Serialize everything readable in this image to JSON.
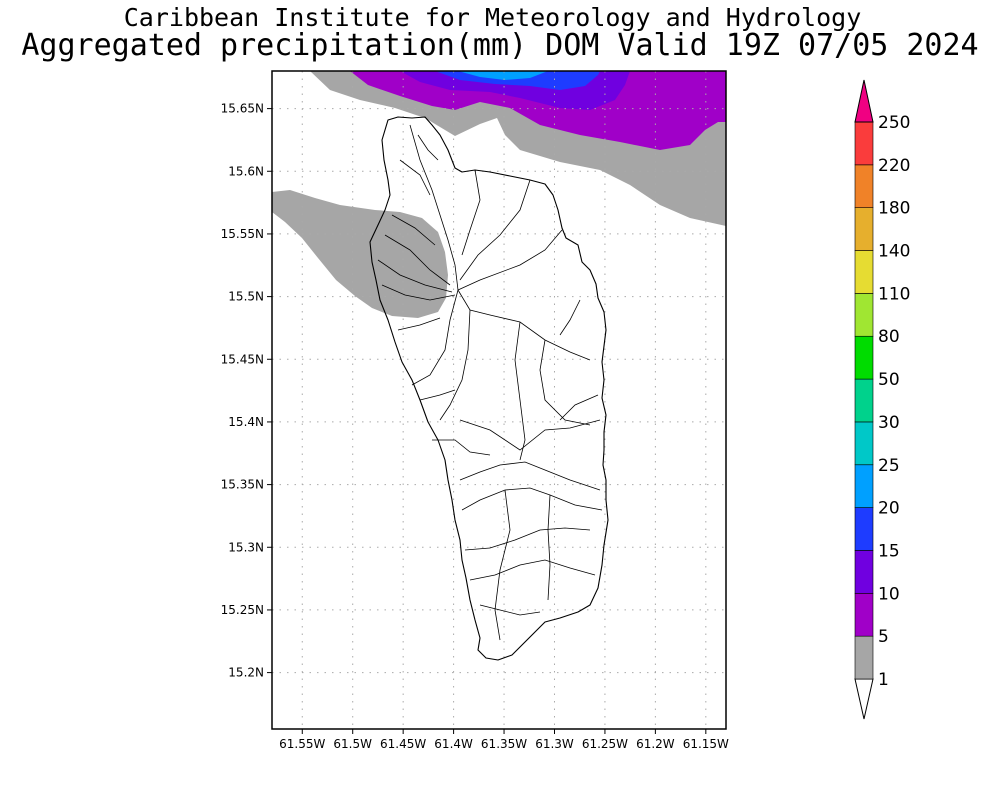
{
  "title_line1": "Caribbean Institute for Meteorology and Hydrology",
  "title_line2": "Aggregated precipitation(mm) DOM Valid 19Z 07/05 2024",
  "map": {
    "lon_range": [
      -61.58,
      -61.13
    ],
    "lat_range": [
      15.155,
      15.68
    ],
    "x_ticks": [
      {
        "value": -61.55,
        "label": "61.55W"
      },
      {
        "value": -61.5,
        "label": "61.5W"
      },
      {
        "value": -61.45,
        "label": "61.45W"
      },
      {
        "value": -61.4,
        "label": "61.4W"
      },
      {
        "value": -61.35,
        "label": "61.35W"
      },
      {
        "value": -61.3,
        "label": "61.3W"
      },
      {
        "value": -61.25,
        "label": "61.25W"
      },
      {
        "value": -61.2,
        "label": "61.2W"
      },
      {
        "value": -61.15,
        "label": "61.15W"
      }
    ],
    "y_ticks": [
      {
        "value": 15.65,
        "label": "15.65N"
      },
      {
        "value": 15.6,
        "label": "15.6N"
      },
      {
        "value": 15.55,
        "label": "15.55N"
      },
      {
        "value": 15.5,
        "label": "15.5N"
      },
      {
        "value": 15.45,
        "label": "15.45N"
      },
      {
        "value": 15.4,
        "label": "15.4N"
      },
      {
        "value": 15.35,
        "label": "15.35N"
      },
      {
        "value": 15.3,
        "label": "15.3N"
      },
      {
        "value": 15.25,
        "label": "15.25N"
      },
      {
        "value": 15.2,
        "label": "15.2N"
      }
    ],
    "grid": true,
    "colors": {
      "land_fill": "#ffffff",
      "coast": "#000000",
      "grid": "#aaaaaa"
    }
  },
  "colorbar": {
    "labels": [
      "1",
      "5",
      "10",
      "15",
      "20",
      "25",
      "30",
      "50",
      "80",
      "110",
      "140",
      "180",
      "220",
      "250"
    ],
    "colors": [
      "#a6a6a6",
      "#a000c8",
      "#7000e0",
      "#1e3cff",
      "#00a0ff",
      "#00c8c8",
      "#00d28c",
      "#00dc00",
      "#a0e632",
      "#e6dc32",
      "#e6af2d",
      "#f08228",
      "#fa3c3c",
      "#f00082"
    ],
    "under_color": "#ffffff",
    "over_color": "#f00082"
  }
}
